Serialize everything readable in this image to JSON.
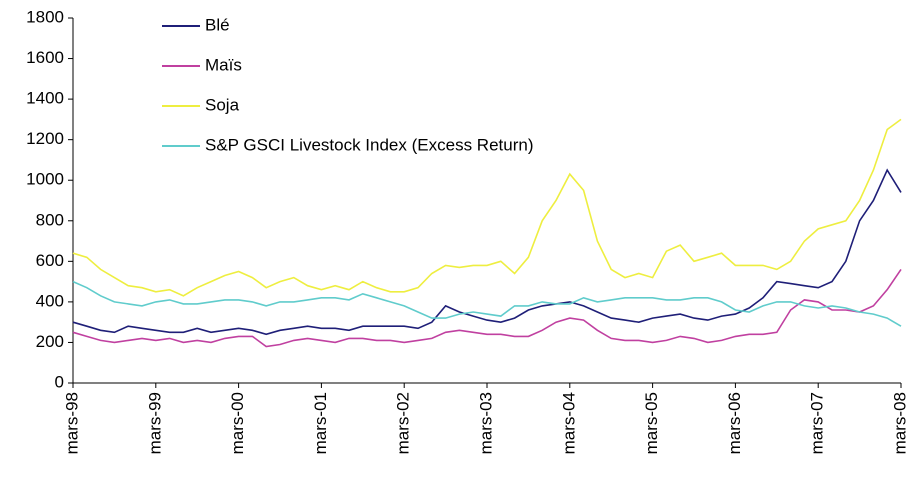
{
  "chart_data": {
    "type": "line",
    "categories": [
      "mars-98",
      null,
      null,
      null,
      null,
      null,
      "mars-99",
      null,
      null,
      null,
      null,
      null,
      "mars-00",
      null,
      null,
      null,
      null,
      null,
      "mars-01",
      null,
      null,
      null,
      null,
      null,
      "mars-02",
      null,
      null,
      null,
      null,
      null,
      "mars-03",
      null,
      null,
      null,
      null,
      null,
      "mars-04",
      null,
      null,
      null,
      null,
      null,
      "mars-05",
      null,
      null,
      null,
      null,
      null,
      "mars-06",
      null,
      null,
      null,
      null,
      null,
      "mars-07",
      null,
      null,
      null,
      null,
      null,
      "mars-08"
    ],
    "series": [
      {
        "name": "Blé",
        "color": "#1f1f78",
        "values": [
          300,
          280,
          260,
          250,
          280,
          270,
          260,
          250,
          250,
          270,
          250,
          260,
          270,
          260,
          240,
          260,
          270,
          280,
          270,
          270,
          260,
          280,
          280,
          280,
          280,
          270,
          300,
          380,
          350,
          330,
          310,
          300,
          320,
          360,
          380,
          390,
          400,
          380,
          350,
          320,
          310,
          300,
          320,
          330,
          340,
          320,
          310,
          330,
          340,
          370,
          420,
          500,
          490,
          480,
          470,
          500,
          600,
          800,
          900,
          1050,
          940
        ]
      },
      {
        "name": "Maïs",
        "color": "#c040a0",
        "values": [
          250,
          230,
          210,
          200,
          210,
          220,
          210,
          220,
          200,
          210,
          200,
          220,
          230,
          230,
          180,
          190,
          210,
          220,
          210,
          200,
          220,
          220,
          210,
          210,
          200,
          210,
          220,
          250,
          260,
          250,
          240,
          240,
          230,
          230,
          260,
          300,
          320,
          310,
          260,
          220,
          210,
          210,
          200,
          210,
          230,
          220,
          200,
          210,
          230,
          240,
          240,
          250,
          360,
          410,
          400,
          360,
          360,
          350,
          380,
          460,
          560
        ]
      },
      {
        "name": "Soja",
        "color": "#eeee40",
        "values": [
          640,
          620,
          560,
          520,
          480,
          470,
          450,
          460,
          430,
          470,
          500,
          530,
          550,
          520,
          470,
          500,
          520,
          480,
          460,
          480,
          460,
          500,
          470,
          450,
          450,
          470,
          540,
          580,
          570,
          580,
          580,
          600,
          540,
          620,
          800,
          900,
          1030,
          950,
          700,
          560,
          520,
          540,
          520,
          650,
          680,
          600,
          620,
          640,
          580,
          580,
          580,
          560,
          600,
          700,
          760,
          780,
          800,
          900,
          1050,
          1250,
          1300
        ]
      },
      {
        "name": "S&P GSCI Livestock Index (Excess Return)",
        "color": "#60cccc",
        "values": [
          500,
          470,
          430,
          400,
          390,
          380,
          400,
          410,
          390,
          390,
          400,
          410,
          410,
          400,
          380,
          400,
          400,
          410,
          420,
          420,
          410,
          440,
          420,
          400,
          380,
          350,
          320,
          320,
          340,
          350,
          340,
          330,
          380,
          380,
          400,
          390,
          390,
          420,
          400,
          410,
          420,
          420,
          420,
          410,
          410,
          420,
          420,
          400,
          360,
          350,
          380,
          400,
          400,
          380,
          370,
          380,
          370,
          350,
          340,
          320,
          280
        ]
      }
    ],
    "ylim": [
      0,
      1800
    ],
    "yticks": [
      0,
      200,
      400,
      600,
      800,
      1000,
      1200,
      1400,
      1600,
      1800
    ]
  }
}
